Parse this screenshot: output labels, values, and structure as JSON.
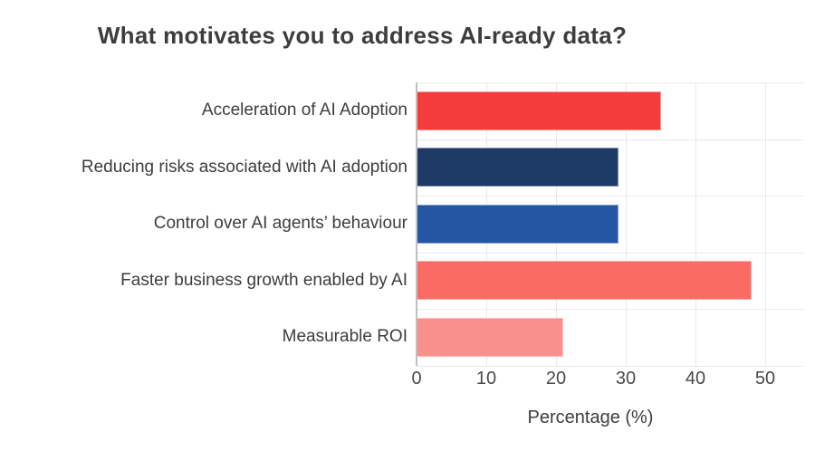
{
  "chart_data": {
    "type": "bar",
    "orientation": "horizontal",
    "title": "What motivates you to address AI-ready data?",
    "categories": [
      "Acceleration of AI Adoption",
      "Reducing risks associated with AI adoption",
      "Control over AI agents’ behaviour",
      "Faster business growth enabled by AI",
      "Measurable ROI"
    ],
    "values": [
      35,
      29,
      29,
      48,
      21
    ],
    "bar_colors": [
      "#f43c3c",
      "#1e3a67",
      "#2456a4",
      "#f96b63",
      "#fa908b"
    ],
    "xlabel": "Percentage (%)",
    "ylabel": "",
    "xticks": [
      0,
      10,
      20,
      30,
      40,
      50
    ],
    "xlim": [
      0,
      55.6
    ],
    "grid": true,
    "legend": false,
    "colors": {
      "background": "#ffffff",
      "gridline": "#e9e9e9",
      "axis_line": "#bfbfbf",
      "title_text": "#3d3d3d",
      "label_text": "#3d3d3d",
      "tick_text": "#4a4a4a"
    }
  }
}
